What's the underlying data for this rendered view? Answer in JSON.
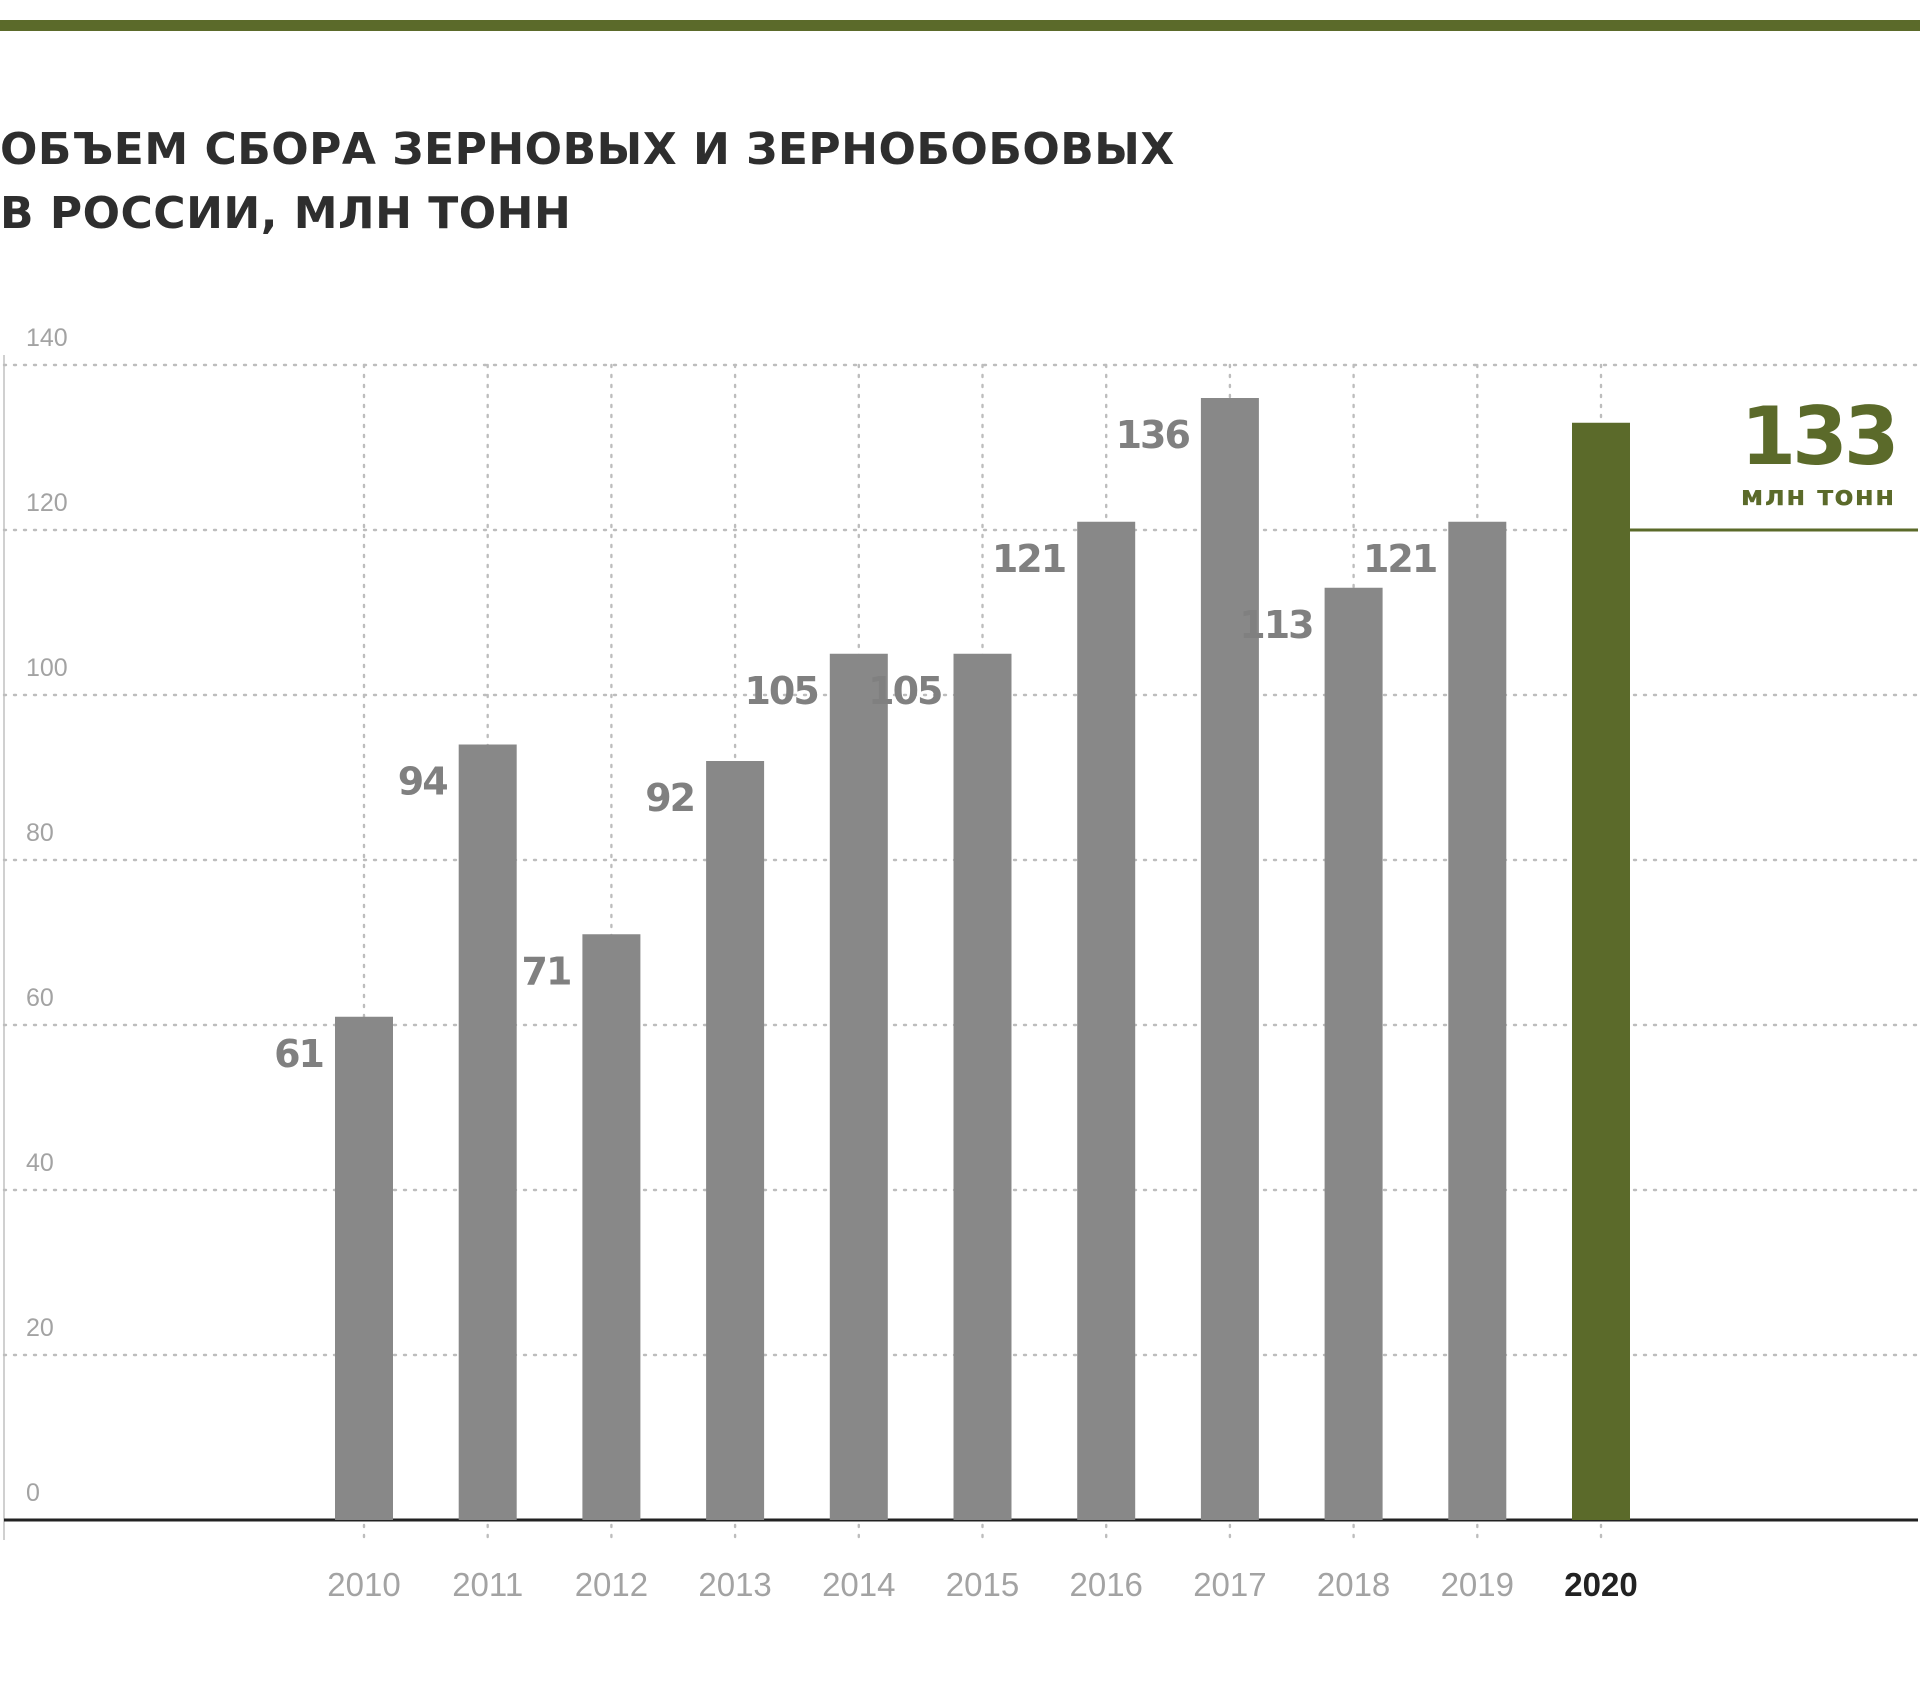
{
  "header": {
    "title_line1": "ОБЪЕМ СБОРА ЗЕРНОВЫХ И ЗЕРНОБОБОВЫХ",
    "title_line2": "В РОССИИ, МЛН ТОНН"
  },
  "callout": {
    "value": "133",
    "unit": "млн тонн"
  },
  "colors": {
    "accent": "#5b6a2a",
    "bar": "#888888",
    "grid": "#bdbdbd",
    "axis_text": "#a3a3a3",
    "value_text": "#808080",
    "title_text": "#2e2e2e"
  },
  "chart_data": {
    "type": "bar",
    "title": "ОБЪЕМ СБОРА ЗЕРНОВЫХ И ЗЕРНОБОБОВЫХ В РОССИИ, МЛН ТОНН",
    "xlabel": "",
    "ylabel": "",
    "categories": [
      "2010",
      "2011",
      "2012",
      "2013",
      "2014",
      "2015",
      "2016",
      "2017",
      "2018",
      "2019",
      "2020"
    ],
    "values": [
      61,
      94,
      71,
      92,
      105,
      105,
      121,
      136,
      113,
      121,
      133
    ],
    "labels": [
      "61",
      "94",
      "71",
      "92",
      "105",
      "105",
      "121",
      "136",
      "113",
      "121",
      ""
    ],
    "highlight_index": 10,
    "yticks": [
      "0",
      "20",
      "40",
      "60",
      "80",
      "100",
      "120",
      "140"
    ],
    "ylim": [
      0,
      140
    ],
    "grid": true,
    "legend": "none"
  }
}
